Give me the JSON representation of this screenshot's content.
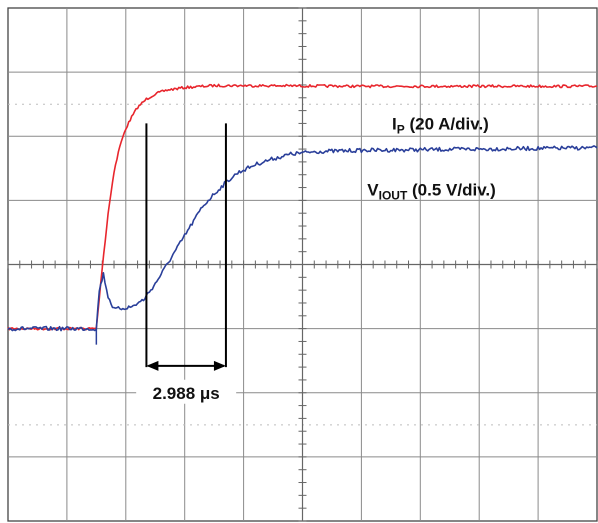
{
  "chart_data": {
    "type": "line",
    "title": "",
    "xlabel": "",
    "ylabel": "",
    "grid": true,
    "x_divisions": 10,
    "y_divisions": 8,
    "series": [
      {
        "name": "IP (20 A/div.)",
        "name_main": "I",
        "name_sub": "P",
        "name_rest": " (20 A/div.)",
        "color": "#e8262d",
        "x": [
          0.0,
          1.5,
          1.6,
          1.7,
          1.8,
          1.9,
          2.0,
          2.1,
          2.2,
          2.35,
          2.5,
          2.7,
          3.0,
          3.5,
          4.0,
          6.0,
          8.0,
          10.0
        ],
        "y": [
          -1.0,
          -1.0,
          -0.05,
          0.8,
          1.45,
          1.85,
          2.12,
          2.3,
          2.45,
          2.58,
          2.66,
          2.72,
          2.76,
          2.79,
          2.79,
          2.78,
          2.78,
          2.78
        ]
      },
      {
        "name": "VIOUT (0.5 V/div.)",
        "name_main": "V",
        "name_sub": "IOUT",
        "name_rest": " (0.5 V/div.)",
        "color": "#2a3f9a",
        "x": [
          0.0,
          1.5,
          1.55,
          1.62,
          1.7,
          1.8,
          1.95,
          2.1,
          2.3,
          2.5,
          2.7,
          2.9,
          3.1,
          3.3,
          3.5,
          3.7,
          3.9,
          4.2,
          4.5,
          4.8,
          5.2,
          6.0,
          7.0,
          8.0,
          9.0,
          10.0
        ],
        "y": [
          -1.0,
          -1.0,
          -0.4,
          -0.15,
          -0.5,
          -0.7,
          -0.68,
          -0.66,
          -0.55,
          -0.3,
          0.0,
          0.3,
          0.6,
          0.9,
          1.1,
          1.28,
          1.43,
          1.56,
          1.65,
          1.72,
          1.76,
          1.78,
          1.79,
          1.8,
          1.81,
          1.82
        ]
      }
    ],
    "annotation": {
      "text": "2.988 μs",
      "x_start": 2.35,
      "x_end": 3.7
    }
  }
}
